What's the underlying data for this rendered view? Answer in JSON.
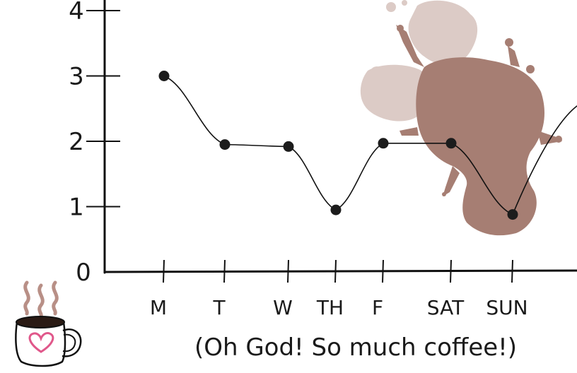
{
  "chart_data": {
    "type": "line",
    "title": "",
    "xlabel": "(Oh God! So much coffee!)",
    "ylabel": "",
    "categories": [
      "M",
      "T",
      "W",
      "TH",
      "F",
      "SAT",
      "SUN"
    ],
    "series": [
      {
        "values": [
          3.0,
          1.95,
          1.92,
          0.95,
          1.97,
          1.97,
          0.88
        ]
      }
    ],
    "y_ticks": [
      "0",
      "1",
      "2",
      "3",
      "4"
    ],
    "ylim": [
      0,
      4.2
    ],
    "grid": false,
    "legend": "none",
    "colors": {
      "line": "#111111",
      "marker": "#1c1c1c",
      "splash_dark": "#a67e73",
      "splash_light": "#dccbc6",
      "mug_heart": "#e0578a",
      "steam": "#b88f86"
    }
  },
  "decorations": {
    "mug_icon": "coffee-mug-icon",
    "splash_icon": "coffee-splash-icon"
  }
}
